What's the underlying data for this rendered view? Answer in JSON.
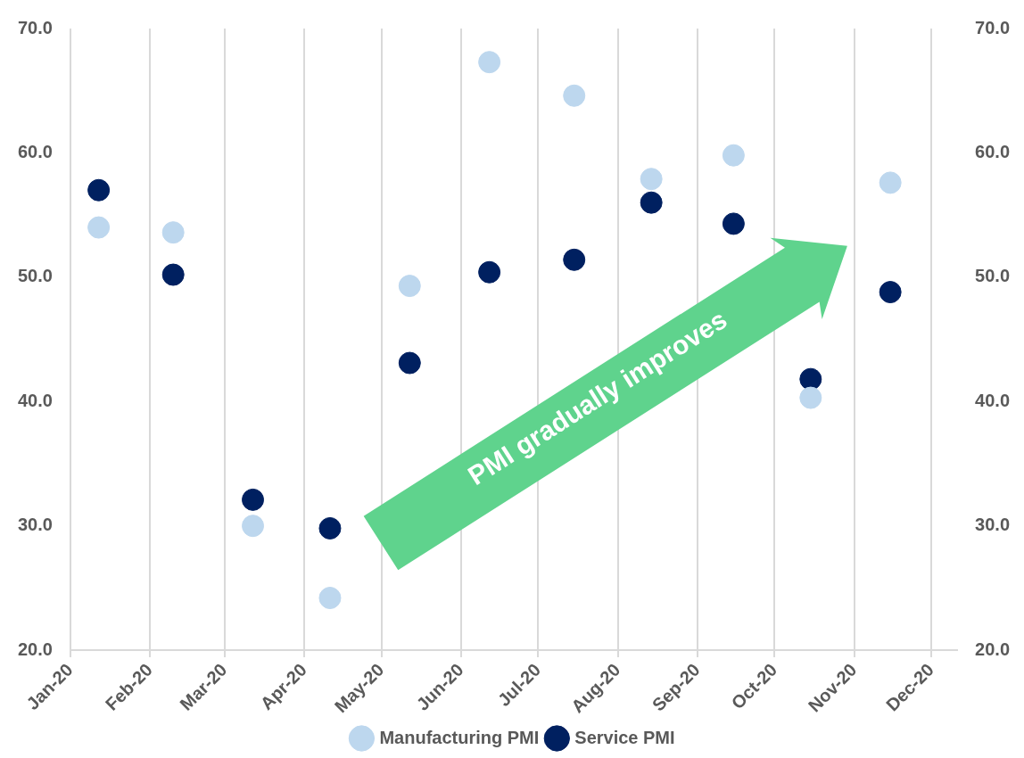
{
  "chart_data": {
    "type": "scatter",
    "xlim": [
      "2020-01-01",
      "2020-12-11"
    ],
    "xticks": [
      {
        "value": "2020-01-01",
        "label": "Jan-20"
      },
      {
        "value": "2020-02-01",
        "label": "Feb-20"
      },
      {
        "value": "2020-03-01",
        "label": "Mar-20"
      },
      {
        "value": "2020-04-01",
        "label": "Apr-20"
      },
      {
        "value": "2020-05-01",
        "label": "May-20"
      },
      {
        "value": "2020-06-01",
        "label": "Jun-20"
      },
      {
        "value": "2020-07-01",
        "label": "Jul-20"
      },
      {
        "value": "2020-08-01",
        "label": "Aug-20"
      },
      {
        "value": "2020-09-01",
        "label": "Sep-20"
      },
      {
        "value": "2020-10-01",
        "label": "Oct-20"
      },
      {
        "value": "2020-11-01",
        "label": "Nov-20"
      },
      {
        "value": "2020-12-01",
        "label": "Dec-20"
      }
    ],
    "x": [
      "2020-01-12",
      "2020-02-10",
      "2020-03-12",
      "2020-04-11",
      "2020-05-12",
      "2020-06-12",
      "2020-07-15",
      "2020-08-14",
      "2020-09-15",
      "2020-10-15",
      "2020-11-15"
    ],
    "ylim": [
      20,
      70
    ],
    "yticks": [
      {
        "value": 20,
        "label": "20.0"
      },
      {
        "value": 30,
        "label": "30.0"
      },
      {
        "value": 40,
        "label": "40.0"
      },
      {
        "value": 50,
        "label": "50.0"
      },
      {
        "value": 60,
        "label": "60.0"
      },
      {
        "value": 70,
        "label": "70.0"
      }
    ],
    "y2lim": [
      20,
      70
    ],
    "y2ticks": [
      {
        "value": 20,
        "label": "20.0"
      },
      {
        "value": 30,
        "label": "30.0"
      },
      {
        "value": 40,
        "label": "40.0"
      },
      {
        "value": 50,
        "label": "50.0"
      },
      {
        "value": 60,
        "label": "60.0"
      },
      {
        "value": 70,
        "label": "70.0"
      }
    ],
    "series": [
      {
        "name": "Manufacturing PMI",
        "color": "#bdd7ee",
        "values": [
          54.0,
          53.6,
          30.0,
          24.2,
          49.3,
          67.3,
          64.6,
          57.9,
          59.8,
          40.3,
          57.6
        ]
      },
      {
        "name": "Service PMI",
        "color": "#002060",
        "values": [
          57.0,
          50.2,
          32.1,
          29.8,
          43.1,
          50.4,
          51.4,
          56.0,
          54.3,
          41.8,
          48.8
        ]
      }
    ],
    "annotations": [
      "PMI gradually improves"
    ],
    "grid": "x",
    "legend": "bottom",
    "marker": "circle"
  }
}
